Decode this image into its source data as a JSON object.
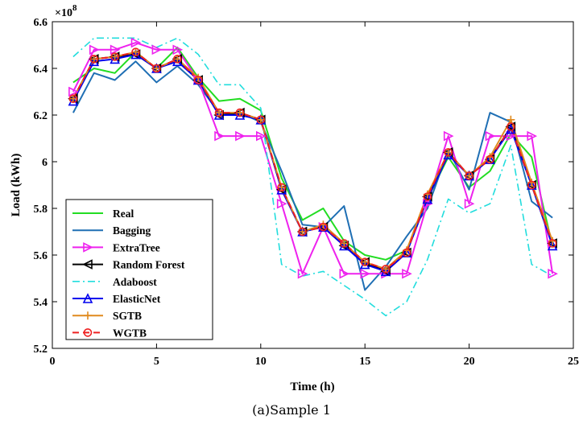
{
  "caption": "(a)Sample 1",
  "chart_data": {
    "type": "line",
    "title": "",
    "xlabel": "Time (h)",
    "ylabel": "Load (kWh)",
    "y_multiplier_label": "×10",
    "y_multiplier_exp": "8",
    "xlim": [
      0,
      25
    ],
    "ylim": [
      5.2,
      6.6
    ],
    "xticks": [
      "0",
      "5",
      "10",
      "15",
      "20",
      "25"
    ],
    "yticks": [
      "5.2",
      "5.4",
      "5.6",
      "5.8",
      "6",
      "6.2",
      "6.4",
      "6.6"
    ],
    "grid": false,
    "legend_position": "bottom-left",
    "x": [
      1,
      2,
      3,
      4,
      5,
      6,
      7,
      8,
      9,
      10,
      11,
      12,
      13,
      14,
      15,
      16,
      17,
      18,
      19,
      20,
      21,
      22,
      23,
      24
    ],
    "series": [
      {
        "name": "Real",
        "color": "#22dd22",
        "style": "solid",
        "marker": "none",
        "values": [
          6.34,
          6.4,
          6.38,
          6.47,
          6.4,
          6.49,
          6.36,
          6.26,
          6.27,
          6.22,
          5.93,
          5.75,
          5.8,
          5.66,
          5.6,
          5.58,
          5.62,
          5.84,
          6.02,
          5.89,
          5.96,
          6.12,
          6.02,
          5.64
        ]
      },
      {
        "name": "Bagging",
        "color": "#1f6fb4",
        "style": "solid",
        "marker": "none",
        "values": [
          6.21,
          6.38,
          6.35,
          6.43,
          6.34,
          6.41,
          6.33,
          6.21,
          6.21,
          6.17,
          5.96,
          5.73,
          5.72,
          5.81,
          5.45,
          5.55,
          5.68,
          5.8,
          6.05,
          5.88,
          6.21,
          6.17,
          5.83,
          5.76
        ]
      },
      {
        "name": "ExtraTree",
        "color": "#ee22ee",
        "style": "solid",
        "marker": "triangle-right",
        "values": [
          6.3,
          6.48,
          6.48,
          6.51,
          6.48,
          6.48,
          6.35,
          6.11,
          6.11,
          6.11,
          5.82,
          5.52,
          5.72,
          5.52,
          5.52,
          5.52,
          5.52,
          5.82,
          6.11,
          5.82,
          6.11,
          6.11,
          6.11,
          5.52
        ]
      },
      {
        "name": "Random Forest",
        "color": "#000000",
        "style": "solid",
        "marker": "triangle-left",
        "values": [
          6.27,
          6.44,
          6.45,
          6.46,
          6.4,
          6.44,
          6.35,
          6.2,
          6.21,
          6.18,
          5.88,
          5.7,
          5.72,
          5.64,
          5.57,
          5.53,
          5.61,
          5.85,
          6.04,
          5.94,
          6.01,
          6.15,
          5.9,
          5.65
        ]
      },
      {
        "name": "Adaboost",
        "color": "#22dddd",
        "style": "dashdot",
        "marker": "none",
        "values": [
          6.45,
          6.53,
          6.53,
          6.53,
          6.49,
          6.53,
          6.46,
          6.33,
          6.33,
          6.23,
          5.56,
          5.51,
          5.53,
          5.47,
          5.41,
          5.34,
          5.4,
          5.58,
          5.84,
          5.78,
          5.82,
          6.07,
          5.56,
          5.51
        ]
      },
      {
        "name": "ElasticNet",
        "color": "#0000ee",
        "style": "solid",
        "marker": "triangle-up",
        "values": [
          6.26,
          6.43,
          6.44,
          6.46,
          6.4,
          6.43,
          6.35,
          6.2,
          6.2,
          6.18,
          5.88,
          5.7,
          5.72,
          5.64,
          5.56,
          5.53,
          5.61,
          5.84,
          6.03,
          5.94,
          6.01,
          6.14,
          5.9,
          5.64
        ]
      },
      {
        "name": "SGTB",
        "color": "#e08a1e",
        "style": "solid",
        "marker": "plus",
        "values": [
          6.27,
          6.44,
          6.45,
          6.47,
          6.4,
          6.44,
          6.36,
          6.21,
          6.21,
          6.18,
          5.89,
          5.7,
          5.73,
          5.65,
          5.57,
          5.54,
          5.62,
          5.86,
          6.04,
          5.94,
          6.02,
          6.18,
          5.91,
          5.66
        ]
      },
      {
        "name": "WGTB",
        "color": "#ee2222",
        "style": "dashed",
        "marker": "circle",
        "values": [
          6.27,
          6.44,
          6.45,
          6.47,
          6.4,
          6.44,
          6.35,
          6.21,
          6.21,
          6.18,
          5.89,
          5.7,
          5.72,
          5.65,
          5.57,
          5.54,
          5.61,
          5.85,
          6.04,
          5.94,
          6.01,
          6.15,
          5.9,
          5.65
        ]
      }
    ]
  }
}
